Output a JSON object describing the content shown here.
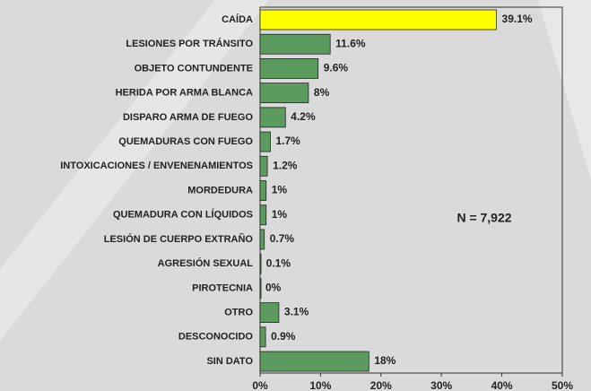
{
  "chart_data": {
    "type": "barh",
    "categories": [
      "CAÍDA",
      "LESIONES POR TRÁNSITO",
      "OBJETO CONTUNDENTE",
      "HERIDA POR ARMA BLANCA",
      "DISPARO ARMA DE FUEGO",
      "QUEMADURAS CON FUEGO",
      "INTOXICACIONES / ENVENENAMIENTOS",
      "MORDEDURA",
      "QUEMADURA CON LÍQUIDOS",
      "LESIÓN DE CUERPO EXTRAÑO",
      "AGRESIÓN SEXUAL",
      "PIROTECNIA",
      "OTRO",
      "DESCONOCIDO",
      "SIN DATO"
    ],
    "values": [
      39.1,
      11.6,
      9.6,
      8,
      4.2,
      1.7,
      1.2,
      1,
      1,
      0.7,
      0.1,
      0,
      3.1,
      0.9,
      18
    ],
    "value_labels": [
      "39.1%",
      "11.6%",
      "9.6%",
      "8%",
      "4.2%",
      "1.7%",
      "1.2%",
      "1%",
      "1%",
      "0.7%",
      "0.1%",
      "0%",
      "3.1%",
      "0.9%",
      "18%"
    ],
    "colors": [
      "#ffff00",
      "#5b9b5e",
      "#5b9b5e",
      "#5b9b5e",
      "#5b9b5e",
      "#5b9b5e",
      "#5b9b5e",
      "#5b9b5e",
      "#5b9b5e",
      "#5b9b5e",
      "#5b9b5e",
      "#5b9b5e",
      "#5b9b5e",
      "#5b9b5e",
      "#5b9b5e"
    ],
    "xlim": [
      0,
      50
    ],
    "xticks": [
      {
        "value": 0,
        "label": "0%"
      },
      {
        "value": 10,
        "label": "10%"
      },
      {
        "value": 20,
        "label": "20%"
      },
      {
        "value": 30,
        "label": "30%"
      },
      {
        "value": 40,
        "label": "40%"
      },
      {
        "value": 50,
        "label": "50%"
      }
    ],
    "annotation": "N = 7,922"
  }
}
